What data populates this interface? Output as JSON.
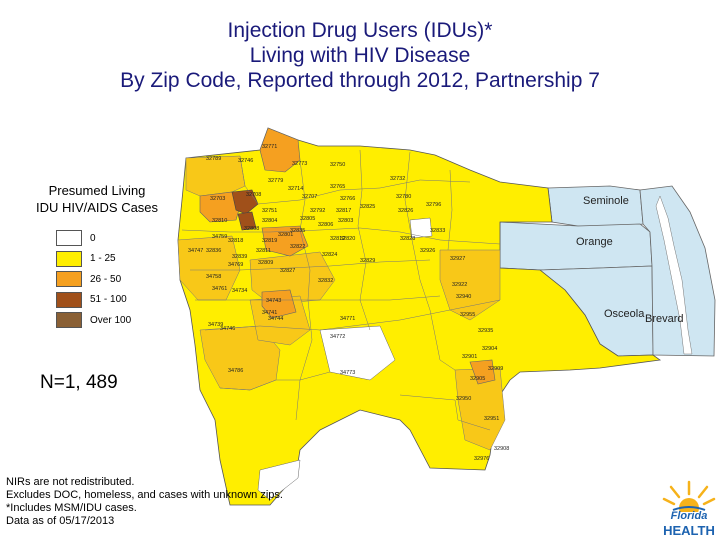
{
  "title": {
    "line1": "Injection Drug Users (IDUs)*",
    "line2": "Living with HIV Disease",
    "line3": "By Zip Code, Reported through 2012, Partnership 7"
  },
  "legend": {
    "title_line1": "Presumed Living",
    "title_line2": "IDU HIV/AIDS Cases",
    "items": [
      {
        "label": "0",
        "color": "#ffffff"
      },
      {
        "label": "1 - 25",
        "color": "#ffee00"
      },
      {
        "label": "26 - 50",
        "color": "#f5a020"
      },
      {
        "label": "51 - 100",
        "color": "#a0501a"
      },
      {
        "label": "Over 100",
        "color": "#8a6035"
      }
    ]
  },
  "n_count": "N=1, 489",
  "counties": {
    "seminole": "Seminole",
    "orange": "Orange",
    "osceola": "Osceola",
    "brevard": "Brevard"
  },
  "notes": [
    "NIRs are not redistributed.",
    "Excludes DOC, homeless, and cases with unknown zips.",
    "*Includes MSM/IDU cases.",
    "Data as of 05/17/2013"
  ],
  "logo": {
    "line1": "Florida",
    "line2": "HEALTH"
  },
  "colors": {
    "title": "#1a1a7a",
    "level_1_25": "#ffee00",
    "level_1_25_alt": "#f8c818",
    "level_26_50": "#f5a020",
    "level_51_100": "#a0501a",
    "neighbor_counties": "#cfe6f2",
    "water": "#ffffff"
  },
  "zip_labels": [
    "32771",
    "32746",
    "32773",
    "32750",
    "32789",
    "32779",
    "32714",
    "32708",
    "32703",
    "32707",
    "32765",
    "32766",
    "32732",
    "32792",
    "32751",
    "32804",
    "32808",
    "32810",
    "32818",
    "32819",
    "32835",
    "32836",
    "32839",
    "32811",
    "32822",
    "32812",
    "32806",
    "32805",
    "32801",
    "32803",
    "32809",
    "32824",
    "32827",
    "32832",
    "32829",
    "32828",
    "32820",
    "32833",
    "32825",
    "32817",
    "32826",
    "34741",
    "34743",
    "34744",
    "34746",
    "34747",
    "34758",
    "34759",
    "34769",
    "34771",
    "34772",
    "34773",
    "34739",
    "34786",
    "34761",
    "34734",
    "32780",
    "32796",
    "32926",
    "32927",
    "32922",
    "32955",
    "32940",
    "32935",
    "32901",
    "32904",
    "32905",
    "32909",
    "32950",
    "32951",
    "32976",
    "32908"
  ]
}
